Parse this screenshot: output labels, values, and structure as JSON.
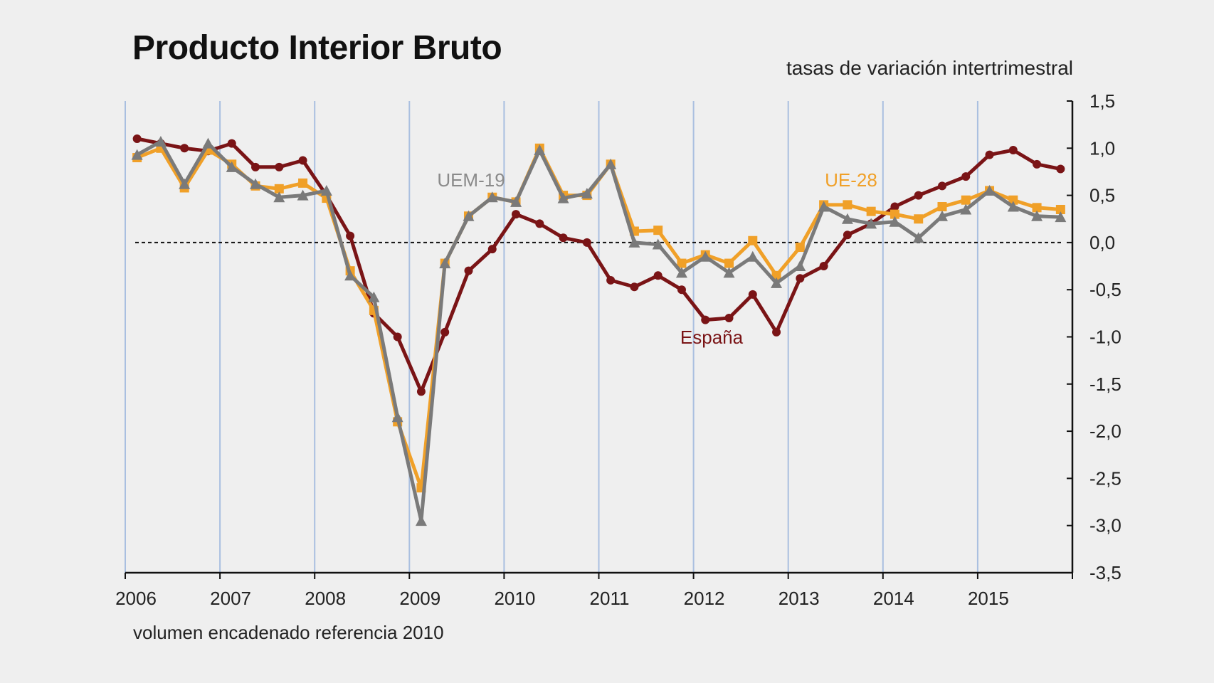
{
  "chart_data": {
    "type": "line",
    "title": "Producto Interior Bruto",
    "subtitle": "tasas de variación intertrimestral",
    "footnote": "volumen encadenado referencia 2010",
    "x_ticks": [
      "2006",
      "2007",
      "2008",
      "2009",
      "2010",
      "2011",
      "2012",
      "2013",
      "2014",
      "2015"
    ],
    "y_ticks": [
      "1,5",
      "1,0",
      "0,5",
      "0,0",
      "-0,5",
      "-1,0",
      "-1,5",
      "-2,0",
      "-2,5",
      "-3,0",
      "-3,5"
    ],
    "ylim": [
      -3.5,
      1.5
    ],
    "y_axis_position": "right",
    "grid": "vertical year lines",
    "zero_line": "dashed",
    "x_period_start": "2006-Q1",
    "x_period_end": "2015-Q4",
    "series": [
      {
        "name": "España",
        "color": "#7a1416",
        "marker": "circle",
        "values": [
          1.1,
          1.05,
          1.0,
          0.97,
          1.05,
          0.8,
          0.8,
          0.87,
          0.5,
          0.07,
          -0.75,
          -1.0,
          -1.58,
          -0.95,
          -0.3,
          -0.07,
          0.3,
          0.2,
          0.05,
          0.0,
          -0.4,
          -0.47,
          -0.35,
          -0.5,
          -0.82,
          -0.8,
          -0.55,
          -0.95,
          -0.38,
          -0.25,
          0.08,
          0.2,
          0.38,
          0.5,
          0.6,
          0.7,
          0.93,
          0.98,
          0.83,
          0.78
        ]
      },
      {
        "name": "UE-28",
        "color": "#f0a028",
        "marker": "square",
        "values": [
          0.9,
          1.0,
          0.58,
          0.98,
          0.83,
          0.6,
          0.57,
          0.63,
          0.47,
          -0.3,
          -0.72,
          -1.9,
          -2.6,
          -0.22,
          0.28,
          0.48,
          0.43,
          1.0,
          0.5,
          0.5,
          0.83,
          0.12,
          0.13,
          -0.22,
          -0.13,
          -0.22,
          0.02,
          -0.35,
          -0.05,
          0.4,
          0.4,
          0.33,
          0.3,
          0.25,
          0.38,
          0.45,
          0.55,
          0.45,
          0.37,
          0.35
        ]
      },
      {
        "name": "UEM-19",
        "color": "#7a7a7a",
        "marker": "triangle",
        "values": [
          0.93,
          1.07,
          0.62,
          1.05,
          0.8,
          0.62,
          0.48,
          0.5,
          0.55,
          -0.35,
          -0.58,
          -1.85,
          -2.95,
          -0.22,
          0.28,
          0.48,
          0.43,
          0.98,
          0.47,
          0.52,
          0.83,
          0.0,
          -0.02,
          -0.32,
          -0.15,
          -0.32,
          -0.15,
          -0.43,
          -0.25,
          0.38,
          0.25,
          0.2,
          0.22,
          0.05,
          0.28,
          0.35,
          0.55,
          0.38,
          0.28,
          0.27
        ]
      }
    ]
  },
  "labels": [
    {
      "text": "UEM-19",
      "color": "#8a8a8a"
    },
    {
      "text": "UE-28",
      "color": "#f0a028"
    },
    {
      "text": "España",
      "color": "#7a1416"
    }
  ]
}
